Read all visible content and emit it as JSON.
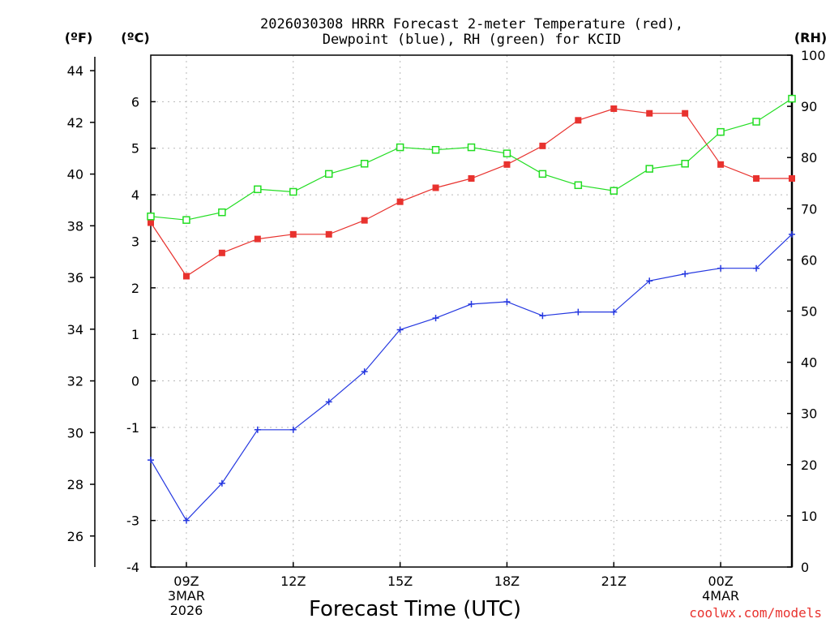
{
  "chart_data": {
    "type": "line",
    "title_line1": "2026030308 HRRR Forecast 2-meter Temperature (red),",
    "title_line2": "Dewpoint (blue), RH (green) for KCID",
    "xlabel": "Forecast Time (UTC)",
    "credit": "coolwx.com/models",
    "left_unit_f": "(ºF)",
    "left_unit_c": "(ºC)",
    "right_unit": "(RH)",
    "x_hours": [
      8,
      9,
      10,
      11,
      12,
      13,
      14,
      15,
      16,
      17,
      18,
      19,
      20,
      21,
      22,
      23,
      24,
      25,
      26
    ],
    "x_ticks": [
      {
        "hour": 9,
        "lines": [
          "09Z",
          "3MAR",
          "2026"
        ]
      },
      {
        "hour": 12,
        "lines": [
          "12Z"
        ]
      },
      {
        "hour": 15,
        "lines": [
          "15Z"
        ]
      },
      {
        "hour": 18,
        "lines": [
          "18Z"
        ]
      },
      {
        "hour": 21,
        "lines": [
          "21Z"
        ]
      },
      {
        "hour": 24,
        "lines": [
          "00Z",
          "4MAR"
        ]
      }
    ],
    "xlim": [
      8,
      26
    ],
    "celsius_axis": {
      "ylim": [
        -4,
        7
      ],
      "ticks": [
        "-4",
        "-3",
        "-1",
        "0",
        "1",
        "2",
        "3",
        "4",
        "5",
        "6"
      ]
    },
    "fahrenheit_axis": {
      "ylim": [
        24.8,
        44.6
      ],
      "ticks": [
        "26",
        "28",
        "30",
        "32",
        "34",
        "36",
        "38",
        "40",
        "42",
        "44"
      ]
    },
    "rh_axis": {
      "ylim": [
        0,
        100
      ],
      "ticks": [
        "0",
        "10",
        "20",
        "30",
        "40",
        "50",
        "60",
        "70",
        "80",
        "90",
        "100"
      ]
    },
    "series": [
      {
        "name": "Temperature",
        "axis": "celsius",
        "color": "#e8322e",
        "marker": "filled-square",
        "values": [
          3.4,
          2.25,
          2.75,
          3.05,
          3.15,
          3.15,
          3.45,
          3.85,
          4.15,
          4.35,
          4.65,
          5.05,
          5.6,
          5.85,
          5.75,
          5.75,
          4.65,
          4.35,
          4.35
        ]
      },
      {
        "name": "Dewpoint",
        "axis": "celsius",
        "color": "#2437e0",
        "marker": "plus",
        "values": [
          -1.7,
          -3.0,
          -2.2,
          -1.05,
          -1.05,
          -0.45,
          0.2,
          1.1,
          1.35,
          1.65,
          1.7,
          1.4,
          1.48,
          1.48,
          2.15,
          2.3,
          2.42,
          2.42,
          3.15
        ]
      },
      {
        "name": "RH",
        "axis": "rh",
        "color": "#22dd22",
        "marker": "open-square",
        "values": [
          68.5,
          67.8,
          69.3,
          73.8,
          73.3,
          76.8,
          78.8,
          82.0,
          81.5,
          82.0,
          80.8,
          76.8,
          74.6,
          73.5,
          77.8,
          78.8,
          85.0,
          87.0,
          91.5
        ]
      }
    ]
  }
}
